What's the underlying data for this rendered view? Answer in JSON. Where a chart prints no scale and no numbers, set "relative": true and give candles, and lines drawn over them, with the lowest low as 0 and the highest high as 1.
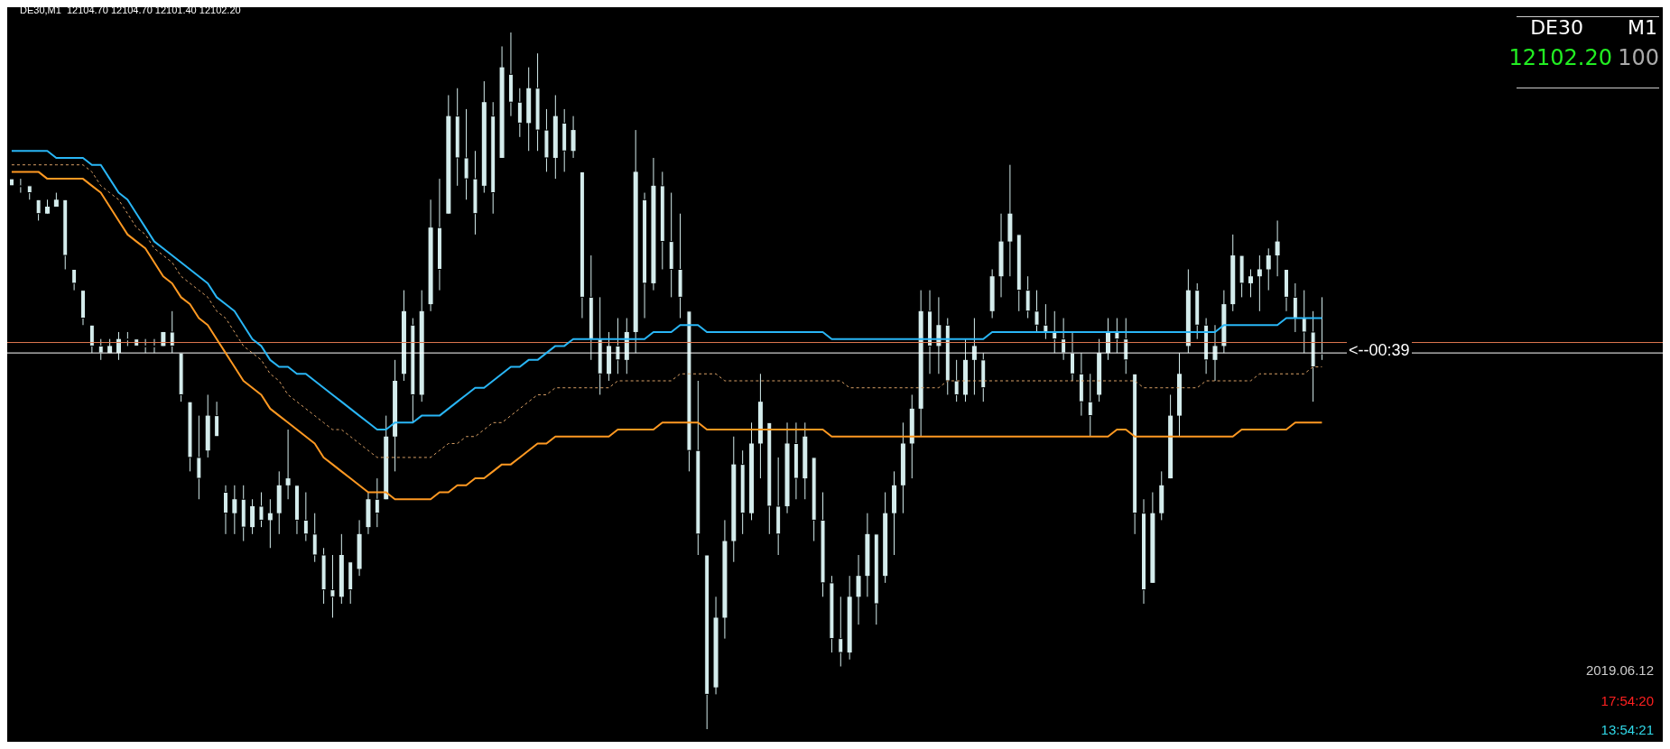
{
  "chart_data": {
    "type": "candlestick",
    "relative": true,
    "title": "DE30,M1  12104.70 12104.70 12101.40 12102.20",
    "color": "#d4ecec",
    "categories": [
      null,
      null,
      null,
      null,
      null,
      null,
      null,
      null,
      null,
      null,
      null,
      null,
      null,
      null,
      null,
      null,
      null,
      null,
      null,
      null,
      null,
      null,
      null,
      null,
      null,
      null,
      null,
      null,
      null,
      null,
      null,
      null,
      null,
      null,
      null,
      null,
      null,
      null,
      null,
      null,
      null,
      null,
      null,
      null,
      null,
      null,
      null,
      null,
      null,
      null,
      null,
      null,
      null,
      null,
      null,
      null,
      null,
      null,
      null,
      null,
      null,
      null,
      null,
      null,
      null,
      null,
      null,
      null,
      null,
      null,
      null,
      null,
      null,
      null,
      null,
      null,
      null,
      null,
      null,
      null,
      null,
      null,
      null,
      null,
      null,
      null,
      null,
      null,
      null,
      null,
      null,
      null,
      null,
      null,
      null,
      null,
      null,
      null,
      null,
      null,
      null,
      null,
      null,
      null,
      null,
      null,
      null,
      null,
      null,
      null,
      null,
      null,
      null,
      null,
      null,
      null,
      null,
      null,
      null,
      null,
      null,
      null,
      null,
      null,
      null,
      null,
      null,
      null,
      null,
      null,
      null,
      null,
      null,
      null,
      null,
      null,
      null,
      null,
      null,
      null,
      null,
      null,
      null,
      null,
      null,
      null,
      null,
      null
    ],
    "ohlc": [
      [
        0.79,
        0.79,
        0.78,
        0.78
      ],
      [
        0.78,
        0.79,
        0.77,
        0.78
      ],
      [
        0.78,
        0.78,
        0.76,
        0.77
      ],
      [
        0.76,
        0.76,
        0.73,
        0.74
      ],
      [
        0.74,
        0.76,
        0.74,
        0.75
      ],
      [
        0.75,
        0.77,
        0.75,
        0.76
      ],
      [
        0.76,
        0.76,
        0.66,
        0.68
      ],
      [
        0.66,
        0.66,
        0.63,
        0.64
      ],
      [
        0.63,
        0.63,
        0.58,
        0.59
      ],
      [
        0.58,
        0.58,
        0.54,
        0.55
      ],
      [
        0.55,
        0.56,
        0.53,
        0.54
      ],
      [
        0.54,
        0.56,
        0.54,
        0.55
      ],
      [
        0.54,
        0.57,
        0.53,
        0.56
      ],
      [
        0.56,
        0.57,
        0.55,
        0.56
      ],
      [
        0.56,
        0.56,
        0.55,
        0.55
      ],
      [
        0.55,
        0.56,
        0.54,
        0.55
      ],
      [
        0.55,
        0.56,
        0.54,
        0.55
      ],
      [
        0.55,
        0.57,
        0.55,
        0.57
      ],
      [
        0.57,
        0.6,
        0.54,
        0.55
      ],
      [
        0.54,
        0.54,
        0.47,
        0.48
      ],
      [
        0.47,
        0.47,
        0.37,
        0.39
      ],
      [
        0.39,
        0.45,
        0.33,
        0.36
      ],
      [
        0.4,
        0.48,
        0.39,
        0.45
      ],
      [
        0.45,
        0.47,
        0.42,
        0.42
      ],
      [
        0.34,
        0.35,
        0.28,
        0.31
      ],
      [
        0.31,
        0.35,
        0.28,
        0.33
      ],
      [
        0.33,
        0.35,
        0.27,
        0.29
      ],
      [
        0.29,
        0.33,
        0.28,
        0.32
      ],
      [
        0.32,
        0.34,
        0.29,
        0.3
      ],
      [
        0.3,
        0.33,
        0.26,
        0.31
      ],
      [
        0.31,
        0.37,
        0.28,
        0.35
      ],
      [
        0.35,
        0.43,
        0.33,
        0.36
      ],
      [
        0.35,
        0.35,
        0.28,
        0.3
      ],
      [
        0.3,
        0.34,
        0.27,
        0.28
      ],
      [
        0.28,
        0.31,
        0.24,
        0.25
      ],
      [
        0.25,
        0.26,
        0.18,
        0.2
      ],
      [
        0.2,
        0.25,
        0.16,
        0.19
      ],
      [
        0.19,
        0.28,
        0.18,
        0.25
      ],
      [
        0.24,
        0.24,
        0.18,
        0.2
      ],
      [
        0.23,
        0.3,
        0.22,
        0.28
      ],
      [
        0.29,
        0.34,
        0.28,
        0.33
      ],
      [
        0.33,
        0.36,
        0.29,
        0.31
      ],
      [
        0.33,
        0.45,
        0.33,
        0.42
      ],
      [
        0.42,
        0.53,
        0.37,
        0.5
      ],
      [
        0.51,
        0.63,
        0.5,
        0.6
      ],
      [
        0.58,
        0.59,
        0.44,
        0.48
      ],
      [
        0.48,
        0.63,
        0.47,
        0.6
      ],
      [
        0.61,
        0.76,
        0.6,
        0.72
      ],
      [
        0.72,
        0.79,
        0.63,
        0.66
      ],
      [
        0.74,
        0.91,
        0.74,
        0.88
      ],
      [
        0.88,
        0.92,
        0.78,
        0.82
      ],
      [
        0.82,
        0.89,
        0.76,
        0.79
      ],
      [
        0.79,
        0.83,
        0.71,
        0.74
      ],
      [
        0.78,
        0.93,
        0.77,
        0.9
      ],
      [
        0.88,
        0.9,
        0.74,
        0.77
      ],
      [
        0.82,
        0.98,
        0.82,
        0.95
      ],
      [
        0.94,
        1,
        0.88,
        0.9
      ],
      [
        0.9,
        0.92,
        0.85,
        0.87
      ],
      [
        0.87,
        0.95,
        0.83,
        0.92
      ],
      [
        0.92,
        0.97,
        0.83,
        0.86
      ],
      [
        0.86,
        0.89,
        0.8,
        0.82
      ],
      [
        0.82,
        0.91,
        0.79,
        0.88
      ],
      [
        0.87,
        0.89,
        0.8,
        0.83
      ],
      [
        0.83,
        0.88,
        0.82,
        0.86
      ],
      [
        0.8,
        0.8,
        0.59,
        0.62
      ],
      [
        0.62,
        0.68,
        0.53,
        0.56
      ],
      [
        0.56,
        0.62,
        0.48,
        0.51
      ],
      [
        0.51,
        0.57,
        0.5,
        0.55
      ],
      [
        0.55,
        0.59,
        0.51,
        0.53
      ],
      [
        0.53,
        0.59,
        0.51,
        0.57
      ],
      [
        0.57,
        0.86,
        0.54,
        0.8
      ],
      [
        0.76,
        0.77,
        0.59,
        0.64
      ],
      [
        0.64,
        0.82,
        0.63,
        0.78
      ],
      [
        0.78,
        0.8,
        0.66,
        0.7
      ],
      [
        0.7,
        0.77,
        0.62,
        0.66
      ],
      [
        0.66,
        0.74,
        0.59,
        0.62
      ],
      [
        0.6,
        0.6,
        0.37,
        0.4
      ],
      [
        0.4,
        0.5,
        0.25,
        0.28
      ],
      [
        0.25,
        0.25,
        0,
        0.05
      ],
      [
        0.06,
        0.19,
        0.05,
        0.16
      ],
      [
        0.16,
        0.3,
        0.13,
        0.27
      ],
      [
        0.27,
        0.42,
        0.24,
        0.38
      ],
      [
        0.38,
        0.4,
        0.28,
        0.31
      ],
      [
        0.31,
        0.44,
        0.3,
        0.41
      ],
      [
        0.41,
        0.51,
        0.36,
        0.47
      ],
      [
        0.44,
        0.44,
        0.28,
        0.32
      ],
      [
        0.32,
        0.39,
        0.25,
        0.28
      ],
      [
        0.32,
        0.44,
        0.31,
        0.41
      ],
      [
        0.41,
        0.44,
        0.33,
        0.36
      ],
      [
        0.36,
        0.44,
        0.33,
        0.42
      ],
      [
        0.39,
        0.39,
        0.27,
        0.3
      ],
      [
        0.3,
        0.34,
        0.19,
        0.21
      ],
      [
        0.21,
        0.22,
        0.11,
        0.13
      ],
      [
        0.13,
        0.19,
        0.09,
        0.11
      ],
      [
        0.11,
        0.22,
        0.1,
        0.19
      ],
      [
        0.19,
        0.25,
        0.15,
        0.22
      ],
      [
        0.22,
        0.31,
        0.19,
        0.28
      ],
      [
        0.28,
        0.28,
        0.15,
        0.18
      ],
      [
        0.22,
        0.34,
        0.21,
        0.31
      ],
      [
        0.31,
        0.37,
        0.25,
        0.35
      ],
      [
        0.35,
        0.44,
        0.31,
        0.41
      ],
      [
        0.41,
        0.48,
        0.36,
        0.46
      ],
      [
        0.46,
        0.63,
        0.42,
        0.6
      ],
      [
        0.6,
        0.63,
        0.51,
        0.55
      ],
      [
        0.55,
        0.62,
        0.51,
        0.58
      ],
      [
        0.58,
        0.59,
        0.48,
        0.5
      ],
      [
        0.5,
        0.53,
        0.47,
        0.48
      ],
      [
        0.48,
        0.56,
        0.47,
        0.53
      ],
      [
        0.53,
        0.59,
        0.48,
        0.55
      ],
      [
        0.53,
        0.54,
        0.47,
        0.49
      ],
      [
        0.6,
        0.66,
        0.59,
        0.65
      ],
      [
        0.65,
        0.74,
        0.62,
        0.7
      ],
      [
        0.7,
        0.81,
        0.65,
        0.74
      ],
      [
        0.71,
        0.71,
        0.6,
        0.63
      ],
      [
        0.63,
        0.65,
        0.59,
        0.6
      ],
      [
        0.6,
        0.63,
        0.57,
        0.58
      ],
      [
        0.58,
        0.61,
        0.56,
        0.57
      ],
      [
        0.57,
        0.6,
        0.54,
        0.56
      ],
      [
        0.56,
        0.59,
        0.53,
        0.54
      ],
      [
        0.54,
        0.57,
        0.5,
        0.51
      ],
      [
        0.51,
        0.54,
        0.45,
        0.47
      ],
      [
        0.47,
        0.51,
        0.42,
        0.45
      ],
      [
        0.48,
        0.56,
        0.47,
        0.54
      ],
      [
        0.54,
        0.59,
        0.53,
        0.57
      ],
      [
        0.57,
        0.59,
        0.54,
        0.56
      ],
      [
        0.56,
        0.59,
        0.51,
        0.53
      ],
      [
        0.51,
        0.51,
        0.28,
        0.31
      ],
      [
        0.31,
        0.33,
        0.18,
        0.2
      ],
      [
        0.21,
        0.34,
        0.21,
        0.31
      ],
      [
        0.31,
        0.37,
        0.3,
        0.35
      ],
      [
        0.36,
        0.48,
        0.36,
        0.45
      ],
      [
        0.45,
        0.54,
        0.42,
        0.51
      ],
      [
        0.55,
        0.66,
        0.54,
        0.63
      ],
      [
        0.63,
        0.64,
        0.56,
        0.58
      ],
      [
        0.58,
        0.59,
        0.51,
        0.53
      ],
      [
        0.53,
        0.58,
        0.5,
        0.55
      ],
      [
        0.55,
        0.63,
        0.54,
        0.61
      ],
      [
        0.61,
        0.71,
        0.6,
        0.68
      ],
      [
        0.68,
        0.68,
        0.62,
        0.64
      ],
      [
        0.64,
        0.66,
        0.62,
        0.65
      ],
      [
        0.65,
        0.68,
        0.6,
        0.66
      ],
      [
        0.66,
        0.69,
        0.63,
        0.68
      ],
      [
        0.68,
        0.73,
        0.65,
        0.7
      ],
      [
        0.66,
        0.66,
        0.6,
        0.62
      ],
      [
        0.62,
        0.64,
        0.57,
        0.59
      ],
      [
        0.59,
        0.63,
        0.54,
        0.57
      ],
      [
        0.57,
        0.6,
        0.47,
        0.52
      ],
      [
        0.54,
        0.62,
        0.53,
        0.54
      ]
    ],
    "series": [
      {
        "type": "line",
        "color": "#29b6f6",
        "line_style": "solid",
        "values": [
          0.83,
          0.83,
          0.83,
          0.83,
          0.83,
          0.82,
          0.82,
          0.82,
          0.82,
          0.81,
          0.81,
          0.79,
          0.77,
          0.76,
          0.74,
          0.72,
          0.7,
          0.69,
          0.68,
          0.67,
          0.66,
          0.65,
          0.64,
          0.62,
          0.61,
          0.6,
          0.58,
          0.56,
          0.55,
          0.53,
          0.52,
          0.52,
          0.51,
          0.51,
          0.5,
          0.49,
          0.48,
          0.47,
          0.46,
          0.45,
          0.44,
          0.43,
          0.43,
          0.44,
          0.44,
          0.44,
          0.45,
          0.45,
          0.45,
          0.46,
          0.47,
          0.48,
          0.49,
          0.49,
          0.5,
          0.51,
          0.52,
          0.52,
          0.53,
          0.53,
          0.54,
          0.55,
          0.55,
          0.56,
          0.56,
          0.56,
          0.56,
          0.56,
          0.56,
          0.56,
          0.56,
          0.56,
          0.57,
          0.57,
          0.57,
          0.58,
          0.58,
          0.58,
          0.57,
          0.57,
          0.57,
          0.57,
          0.57,
          0.57,
          0.57,
          0.57,
          0.57,
          0.57,
          0.57,
          0.57,
          0.57,
          0.57,
          0.56,
          0.56,
          0.56,
          0.56,
          0.56,
          0.56,
          0.56,
          0.56,
          0.56,
          0.56,
          0.56,
          0.56,
          0.56,
          0.56,
          0.56,
          0.56,
          0.56,
          0.56,
          0.57,
          0.57,
          0.57,
          0.57,
          0.57,
          0.57,
          0.57,
          0.57,
          0.57,
          0.57,
          0.57,
          0.57,
          0.57,
          0.57,
          0.57,
          0.57,
          0.57,
          0.57,
          0.57,
          0.57,
          0.57,
          0.57,
          0.57,
          0.57,
          0.57,
          0.57,
          0.58,
          0.58,
          0.58,
          0.58,
          0.58,
          0.58,
          0.58,
          0.59,
          0.59,
          0.59,
          0.59,
          0.59
        ]
      },
      {
        "type": "line",
        "color": "#d9a066",
        "line_style": "dashed",
        "values": [
          0.81,
          0.81,
          0.81,
          0.81,
          0.81,
          0.81,
          0.81,
          0.81,
          0.81,
          0.8,
          0.78,
          0.77,
          0.76,
          0.74,
          0.72,
          0.71,
          0.69,
          0.68,
          0.67,
          0.65,
          0.64,
          0.63,
          0.62,
          0.6,
          0.59,
          0.57,
          0.55,
          0.54,
          0.53,
          0.51,
          0.5,
          0.48,
          0.47,
          0.46,
          0.45,
          0.44,
          0.43,
          0.43,
          0.42,
          0.41,
          0.4,
          0.39,
          0.39,
          0.39,
          0.39,
          0.39,
          0.39,
          0.39,
          0.4,
          0.41,
          0.41,
          0.42,
          0.42,
          0.43,
          0.44,
          0.44,
          0.45,
          0.46,
          0.47,
          0.48,
          0.48,
          0.49,
          0.49,
          0.49,
          0.49,
          0.49,
          0.49,
          0.49,
          0.5,
          0.5,
          0.5,
          0.5,
          0.5,
          0.5,
          0.5,
          0.51,
          0.51,
          0.51,
          0.51,
          0.51,
          0.5,
          0.5,
          0.5,
          0.5,
          0.5,
          0.5,
          0.5,
          0.5,
          0.5,
          0.5,
          0.5,
          0.5,
          0.5,
          0.5,
          0.49,
          0.49,
          0.49,
          0.49,
          0.49,
          0.49,
          0.49,
          0.49,
          0.49,
          0.49,
          0.49,
          0.5,
          0.5,
          0.5,
          0.5,
          0.5,
          0.5,
          0.5,
          0.5,
          0.5,
          0.5,
          0.5,
          0.5,
          0.5,
          0.5,
          0.5,
          0.5,
          0.5,
          0.5,
          0.5,
          0.5,
          0.5,
          0.5,
          0.49,
          0.49,
          0.49,
          0.49,
          0.49,
          0.49,
          0.49,
          0.5,
          0.5,
          0.5,
          0.5,
          0.5,
          0.5,
          0.51,
          0.51,
          0.51,
          0.51,
          0.51,
          0.51,
          0.52,
          0.52
        ]
      },
      {
        "type": "line",
        "color": "#ff9922",
        "line_style": "solid",
        "values": [
          0.8,
          0.8,
          0.8,
          0.8,
          0.79,
          0.79,
          0.79,
          0.79,
          0.79,
          0.78,
          0.77,
          0.75,
          0.73,
          0.71,
          0.7,
          0.69,
          0.67,
          0.65,
          0.64,
          0.62,
          0.61,
          0.59,
          0.58,
          0.56,
          0.54,
          0.52,
          0.5,
          0.49,
          0.48,
          0.46,
          0.45,
          0.44,
          0.43,
          0.42,
          0.41,
          0.39,
          0.38,
          0.37,
          0.36,
          0.35,
          0.34,
          0.34,
          0.34,
          0.33,
          0.33,
          0.33,
          0.33,
          0.33,
          0.34,
          0.34,
          0.35,
          0.35,
          0.36,
          0.36,
          0.37,
          0.38,
          0.38,
          0.39,
          0.4,
          0.41,
          0.41,
          0.42,
          0.42,
          0.42,
          0.42,
          0.42,
          0.42,
          0.42,
          0.43,
          0.43,
          0.43,
          0.43,
          0.43,
          0.44,
          0.44,
          0.44,
          0.44,
          0.44,
          0.43,
          0.43,
          0.43,
          0.43,
          0.43,
          0.43,
          0.43,
          0.43,
          0.43,
          0.43,
          0.43,
          0.43,
          0.43,
          0.43,
          0.42,
          0.42,
          0.42,
          0.42,
          0.42,
          0.42,
          0.42,
          0.42,
          0.42,
          0.42,
          0.42,
          0.42,
          0.42,
          0.42,
          0.42,
          0.42,
          0.42,
          0.42,
          0.42,
          0.42,
          0.42,
          0.42,
          0.42,
          0.42,
          0.42,
          0.42,
          0.42,
          0.42,
          0.42,
          0.42,
          0.42,
          0.42,
          0.43,
          0.43,
          0.42,
          0.42,
          0.42,
          0.42,
          0.42,
          0.42,
          0.42,
          0.42,
          0.42,
          0.42,
          0.42,
          0.42,
          0.43,
          0.43,
          0.43,
          0.43,
          0.43,
          0.43,
          0.44,
          0.44,
          0.44,
          0.44
        ]
      }
    ],
    "ref_lines": [
      {
        "axis": "y",
        "value": 0.555,
        "color": "#e07850"
      },
      {
        "axis": "y",
        "value": 0.54,
        "color": "#ffffff"
      }
    ],
    "annotations": [
      "DE30",
      "M1",
      "12102.20",
      "100",
      "2019.06.12",
      "17:54:20",
      "13:54:21",
      "<--00:39"
    ],
    "marker": "none"
  }
}
